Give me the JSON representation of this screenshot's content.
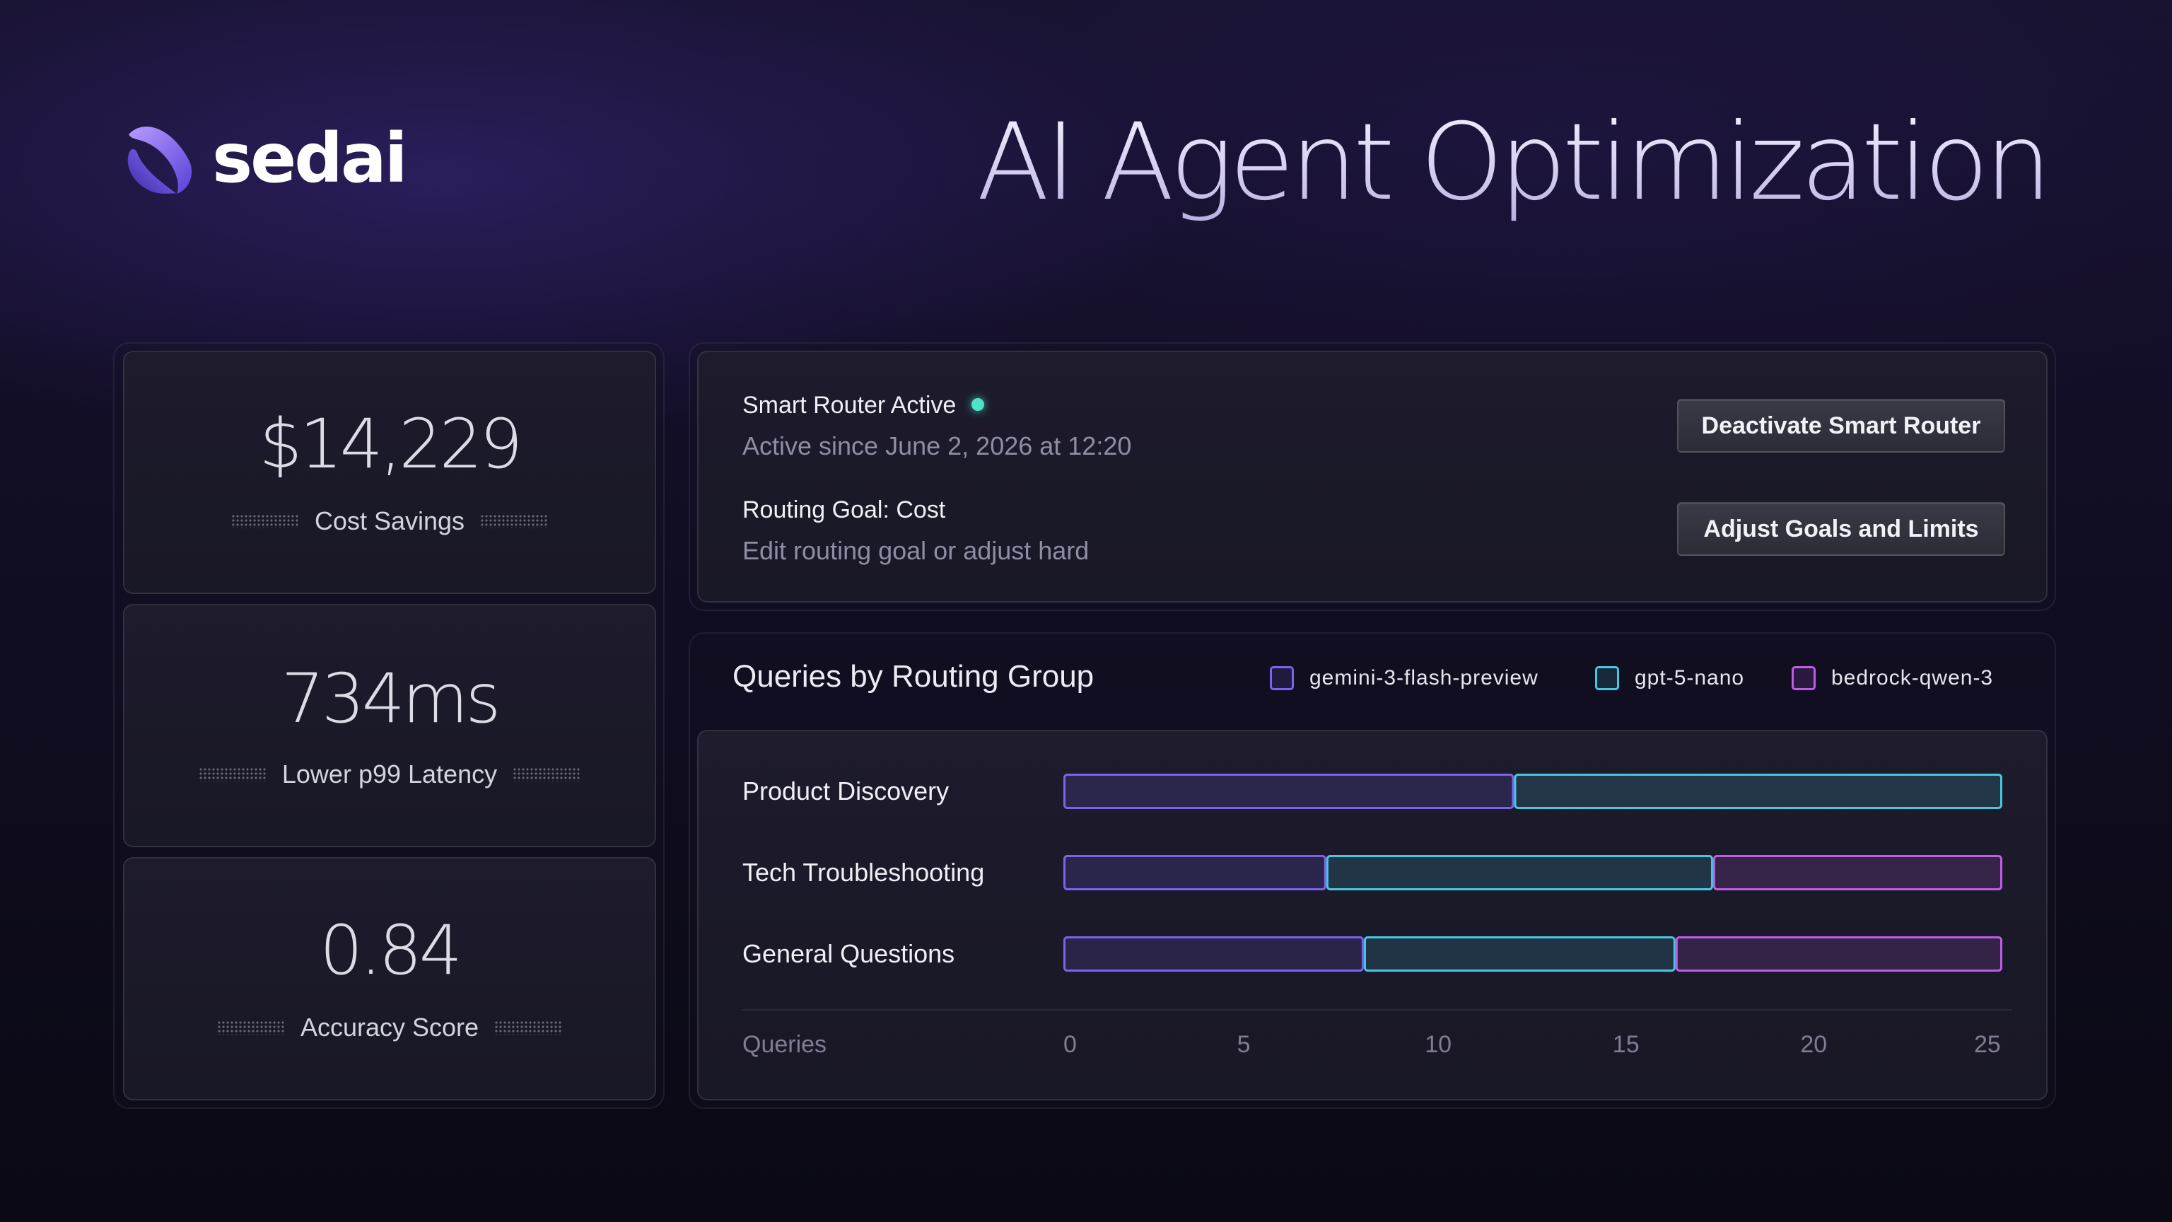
{
  "brand": {
    "name": "sedai"
  },
  "title": "AI Agent Optimization",
  "metrics": [
    {
      "value": "$14,229",
      "label": "Cost Savings"
    },
    {
      "value": "734ms",
      "label": "Lower p99 Latency"
    },
    {
      "value": "0.84",
      "label": "Accuracy Score"
    }
  ],
  "router": {
    "status_title": "Smart Router Active",
    "status_color": "#4fe2c8",
    "status_sub": "Active since June 2, 2026 at 12:20",
    "goal_title": "Routing Goal: Cost",
    "goal_sub": "Edit routing goal or adjust hard",
    "deactivate_label": "Deactivate Smart Router",
    "adjust_label": "Adjust Goals and Limits"
  },
  "chart_data": {
    "type": "bar",
    "orientation": "horizontal",
    "stacked": true,
    "title": "Queries by Routing Group",
    "categories": [
      "Product Discovery",
      "Tech Troubleshooting",
      "General Questions"
    ],
    "series": [
      {
        "name": "gemini-3-flash-preview",
        "color": "#7d62f0",
        "values": [
          12,
          7,
          8
        ]
      },
      {
        "name": "gpt-5-nano",
        "color": "#46c9e0",
        "values": [
          13,
          10.3,
          8.3
        ]
      },
      {
        "name": "bedrock-qwen-3",
        "color": "#c05ce8",
        "values": [
          0,
          7.7,
          8.7
        ]
      }
    ],
    "xlabel": "Queries",
    "xlim": [
      0,
      25
    ],
    "xticks": [
      "0",
      "5",
      "10",
      "15",
      "20",
      "25"
    ],
    "legend_position": "top-right"
  }
}
